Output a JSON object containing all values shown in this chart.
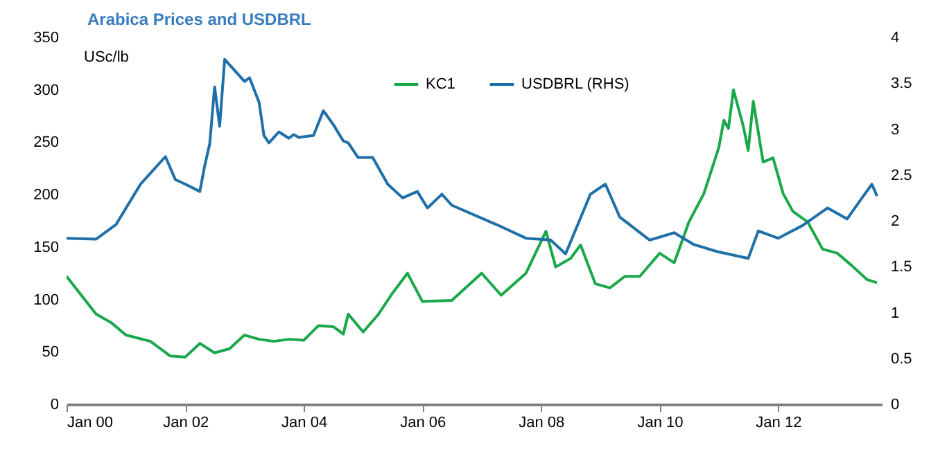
{
  "chart_data": {
    "type": "line",
    "title": "Arabica Prices and USDBRL",
    "ylabel": "USc/lb",
    "xlim": [
      "2000-01",
      "2013-10"
    ],
    "xticks": [
      {
        "value": "2000-01",
        "label": "Jan 00"
      },
      {
        "value": "2002-01",
        "label": "Jan 02"
      },
      {
        "value": "2004-01",
        "label": "Jan 04"
      },
      {
        "value": "2006-01",
        "label": "Jan 06"
      },
      {
        "value": "2008-01",
        "label": "Jan 08"
      },
      {
        "value": "2010-01",
        "label": "Jan 10"
      },
      {
        "value": "2012-01",
        "label": "Jan 12"
      }
    ],
    "ylim": [
      0,
      350
    ],
    "yticks": [
      0,
      50,
      100,
      150,
      200,
      250,
      300,
      350
    ],
    "y2lim": [
      0,
      4
    ],
    "y2ticks": [
      0,
      0.5,
      1,
      1.5,
      2,
      2.5,
      3,
      3.5,
      4
    ],
    "legend": "top",
    "grid": false,
    "series": [
      {
        "name": "KC1",
        "color": "#1aa84b",
        "x": [
          "2000-01",
          "2000-04",
          "2000-07",
          "2000-10",
          "2001-01",
          "2001-06",
          "2001-10",
          "2002-01",
          "2002-04",
          "2002-07",
          "2002-10",
          "2003-01",
          "2003-04",
          "2003-07",
          "2003-10",
          "2004-01",
          "2004-04",
          "2004-07",
          "2004-09",
          "2004-10",
          "2005-01",
          "2005-04",
          "2005-07",
          "2005-10",
          "2006-01",
          "2006-07",
          "2007-01",
          "2007-05",
          "2007-10",
          "2008-02",
          "2008-04",
          "2008-07",
          "2008-09",
          "2008-12",
          "2009-03",
          "2009-06",
          "2009-09",
          "2010-01",
          "2010-04",
          "2010-07",
          "2010-10",
          "2011-01",
          "2011-02",
          "2011-03",
          "2011-04",
          "2011-06",
          "2011-07",
          "2011-08",
          "2011-10",
          "2011-12",
          "2012-02",
          "2012-04",
          "2012-07",
          "2012-10",
          "2013-01",
          "2013-04",
          "2013-07",
          "2013-09"
        ],
        "values": [
          122,
          104,
          86,
          78,
          66,
          60,
          46,
          45,
          58,
          49,
          53,
          66,
          62,
          60,
          62,
          61,
          75,
          74,
          67,
          86,
          69,
          85,
          106,
          125,
          98,
          99,
          125,
          104,
          125,
          165,
          131,
          139,
          152,
          115,
          111,
          122,
          122,
          144,
          135,
          174,
          201,
          245,
          271,
          263,
          300,
          265,
          242,
          289,
          231,
          235,
          201,
          184,
          174,
          148,
          144,
          132,
          119,
          116
        ]
      },
      {
        "name": "USDBRL (RHS)",
        "color": "#1f6fa8",
        "axis": "y2",
        "x": [
          "2000-01",
          "2000-07",
          "2000-11",
          "2001-04",
          "2001-09",
          "2001-11",
          "2002-01",
          "2002-04",
          "2002-05",
          "2002-06",
          "2002-07",
          "2002-08",
          "2002-09",
          "2002-11",
          "2003-01",
          "2003-02",
          "2003-04",
          "2003-05",
          "2003-06",
          "2003-08",
          "2003-10",
          "2003-11",
          "2003-12",
          "2004-03",
          "2004-05",
          "2004-07",
          "2004-09",
          "2004-10",
          "2004-12",
          "2005-03",
          "2005-06",
          "2005-09",
          "2005-12",
          "2006-02",
          "2006-05",
          "2006-07",
          "2007-04",
          "2007-10",
          "2008-03",
          "2008-06",
          "2008-11",
          "2009-02",
          "2009-05",
          "2009-11",
          "2010-04",
          "2010-08",
          "2011-01",
          "2011-07",
          "2011-09",
          "2012-01",
          "2012-06",
          "2012-11",
          "2013-03",
          "2013-06",
          "2013-08",
          "2013-09"
        ],
        "values": [
          1.81,
          1.8,
          1.96,
          2.4,
          2.7,
          2.45,
          2.4,
          2.32,
          2.6,
          2.84,
          3.46,
          3.03,
          3.76,
          3.64,
          3.52,
          3.56,
          3.29,
          2.93,
          2.85,
          2.97,
          2.9,
          2.94,
          2.91,
          2.93,
          3.2,
          3.05,
          2.87,
          2.85,
          2.69,
          2.69,
          2.4,
          2.25,
          2.32,
          2.14,
          2.29,
          2.17,
          1.96,
          1.81,
          1.79,
          1.64,
          2.29,
          2.4,
          2.04,
          1.79,
          1.87,
          1.74,
          1.66,
          1.59,
          1.89,
          1.81,
          1.95,
          2.14,
          2.02,
          2.25,
          2.4,
          2.27
        ]
      }
    ]
  }
}
